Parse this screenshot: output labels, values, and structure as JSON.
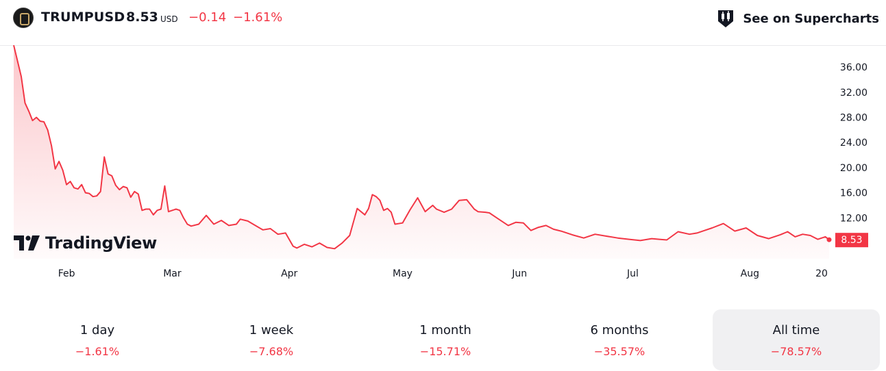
{
  "header": {
    "symbol": "TRUMPUSD",
    "price": "8.53",
    "currency": "USD",
    "change": "−0.14",
    "change_pct": "−1.61%",
    "supercharts_label": "See on Supercharts",
    "logo_icon": "trump-coin-logo-icon",
    "supercharts_icon": "candlestick-icon"
  },
  "watermark": "TradingView",
  "colors": {
    "line": "#f23645",
    "negative": "#f23645",
    "text": "#131722",
    "axis_text": "#131722"
  },
  "chart_data": {
    "type": "area",
    "title": "",
    "xlabel": "",
    "ylabel": "",
    "ylim": [
      5.5,
      39.5
    ],
    "x_tick_labels": [
      "Feb",
      "Mar",
      "Apr",
      "May",
      "Jun",
      "Jul",
      "Aug",
      "20"
    ],
    "y_tick_labels": [
      "12.00",
      "16.00",
      "20.00",
      "24.00",
      "28.00",
      "32.00",
      "36.00"
    ],
    "last_value_label": "8.53",
    "x": [
      "2025-01-18",
      "2025-01-19",
      "2025-01-20",
      "2025-01-21",
      "2025-01-22",
      "2025-01-23",
      "2025-01-24",
      "2025-01-25",
      "2025-01-26",
      "2025-01-27",
      "2025-01-28",
      "2025-01-29",
      "2025-01-30",
      "2025-01-31",
      "2025-02-01",
      "2025-02-02",
      "2025-02-03",
      "2025-02-04",
      "2025-02-05",
      "2025-02-06",
      "2025-02-07",
      "2025-02-08",
      "2025-02-09",
      "2025-02-10",
      "2025-02-11",
      "2025-02-12",
      "2025-02-13",
      "2025-02-14",
      "2025-02-15",
      "2025-02-16",
      "2025-02-17",
      "2025-02-18",
      "2025-02-19",
      "2025-02-20",
      "2025-02-21",
      "2025-02-22",
      "2025-02-23",
      "2025-02-24",
      "2025-02-25",
      "2025-02-26",
      "2025-02-27",
      "2025-02-28",
      "2025-03-01",
      "2025-03-02",
      "2025-03-03",
      "2025-03-04",
      "2025-03-05",
      "2025-03-06",
      "2025-03-08",
      "2025-03-10",
      "2025-03-12",
      "2025-03-14",
      "2025-03-16",
      "2025-03-18",
      "2025-03-19",
      "2025-03-21",
      "2025-03-23",
      "2025-03-25",
      "2025-03-27",
      "2025-03-29",
      "2025-03-31",
      "2025-04-02",
      "2025-04-03",
      "2025-04-05",
      "2025-04-07",
      "2025-04-09",
      "2025-04-11",
      "2025-04-13",
      "2025-04-15",
      "2025-04-17",
      "2025-04-19",
      "2025-04-21",
      "2025-04-22",
      "2025-04-23",
      "2025-04-24",
      "2025-04-25",
      "2025-04-26",
      "2025-04-27",
      "2025-04-28",
      "2025-04-29",
      "2025-05-01",
      "2025-05-03",
      "2025-05-05",
      "2025-05-07",
      "2025-05-09",
      "2025-05-10",
      "2025-05-12",
      "2025-05-14",
      "2025-05-16",
      "2025-05-18",
      "2025-05-20",
      "2025-05-21",
      "2025-05-23",
      "2025-05-24",
      "2025-05-26",
      "2025-05-29",
      "2025-05-31",
      "2025-06-02",
      "2025-06-04",
      "2025-06-06",
      "2025-06-08",
      "2025-06-10",
      "2025-06-12",
      "2025-06-15",
      "2025-06-18",
      "2025-06-21",
      "2025-06-24",
      "2025-06-27",
      "2025-06-30",
      "2025-07-03",
      "2025-07-06",
      "2025-07-08",
      "2025-07-10",
      "2025-07-13",
      "2025-07-16",
      "2025-07-18",
      "2025-07-20",
      "2025-07-22",
      "2025-07-25",
      "2025-07-28",
      "2025-07-31",
      "2025-08-03",
      "2025-08-06",
      "2025-08-09",
      "2025-08-11",
      "2025-08-13",
      "2025-08-15",
      "2025-08-17",
      "2025-08-19",
      "2025-08-21",
      "2025-08-22"
    ],
    "series": [
      {
        "values": [
          39.5,
          37.0,
          34.5,
          30.3,
          29.0,
          27.5,
          28.0,
          27.4,
          27.3,
          26.0,
          23.5,
          19.8,
          21.0,
          19.6,
          17.3,
          17.8,
          16.8,
          16.6,
          17.3,
          16.0,
          15.9,
          15.4,
          15.5,
          16.2,
          21.7,
          19.0,
          18.7,
          17.2,
          16.5,
          17.0,
          16.8,
          15.3,
          16.2,
          15.8,
          13.2,
          13.4,
          13.4,
          12.5,
          13.2,
          13.4,
          17.1,
          13.0,
          13.2,
          13.4,
          13.2,
          12.0,
          11.0,
          10.7,
          11.0,
          12.4,
          11.0,
          11.6,
          10.8,
          11.0,
          11.8,
          11.5,
          10.8,
          10.1,
          10.3,
          9.4,
          9.6,
          7.5,
          7.2,
          7.8,
          7.4,
          8.0,
          7.3,
          7.1,
          8.0,
          9.2,
          13.5,
          12.5,
          13.5,
          15.7,
          15.4,
          14.8,
          13.2,
          13.5,
          12.9,
          11.0,
          11.2,
          13.3,
          15.2,
          13.0,
          14.0,
          13.4,
          12.9,
          13.4,
          14.8,
          14.9,
          13.4,
          13.0,
          12.9,
          12.8,
          12.0,
          10.8,
          11.3,
          11.2,
          10.0,
          10.5,
          10.8,
          10.2,
          9.9,
          9.3,
          8.8,
          9.4,
          9.1,
          8.8,
          8.6,
          8.4,
          8.7,
          8.6,
          8.5,
          9.8,
          9.4,
          9.6,
          10.0,
          10.4,
          11.1,
          9.9,
          10.4,
          9.2,
          8.7,
          9.3,
          9.8,
          9.0,
          9.4,
          9.2,
          8.6,
          9.0,
          8.53
        ]
      }
    ],
    "grid": false,
    "legend": "none"
  },
  "periods": [
    {
      "label": "1 day",
      "value": "−1.61%"
    },
    {
      "label": "1 week",
      "value": "−7.68%"
    },
    {
      "label": "1 month",
      "value": "−15.71%"
    },
    {
      "label": "6 months",
      "value": "−35.57%"
    },
    {
      "label": "All time",
      "value": "−78.57%",
      "active": true
    }
  ]
}
